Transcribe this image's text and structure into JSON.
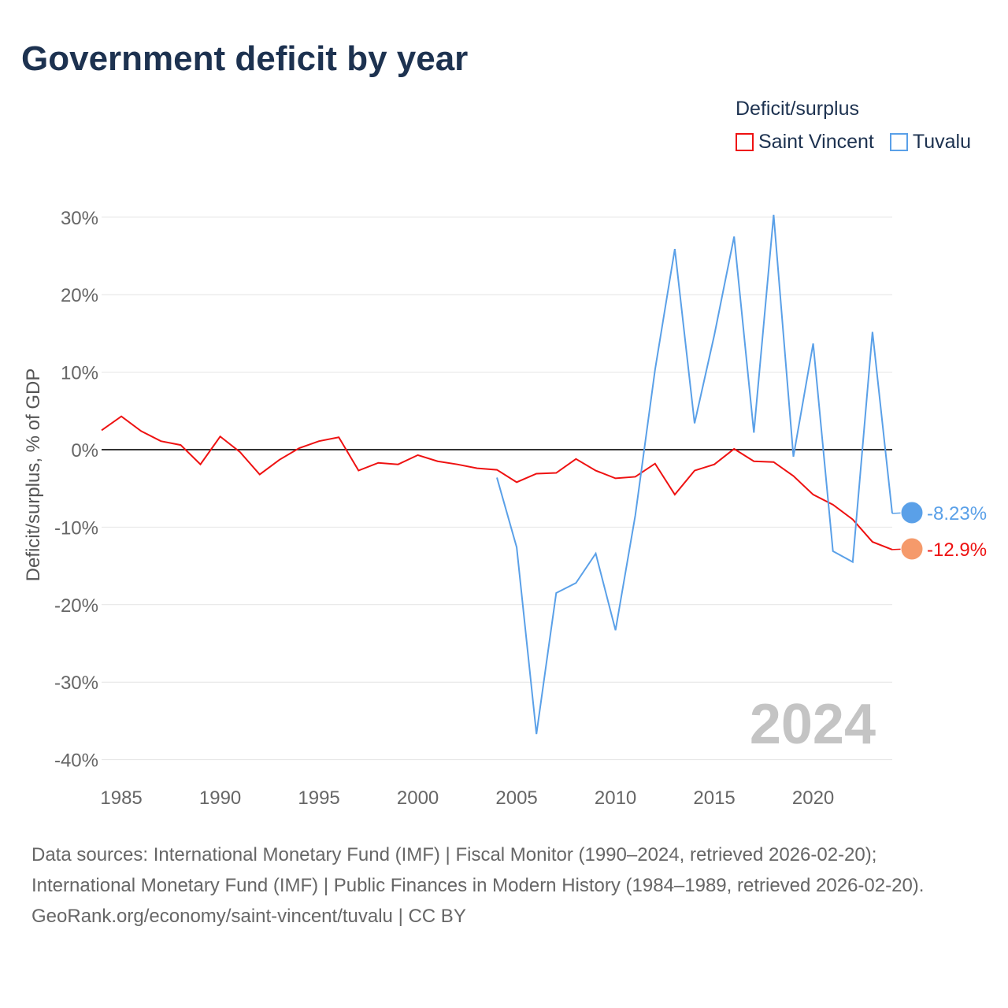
{
  "title": "Government deficit by year",
  "legend": {
    "title": "Deficit/surplus",
    "items": [
      {
        "label": "Saint Vincent",
        "color": "#ee1111"
      },
      {
        "label": "Tuvalu",
        "color": "#5aa0e8"
      }
    ]
  },
  "watermark_year": "2024",
  "footer": {
    "sources": "Data sources: International Monetary Fund (IMF) | Fiscal Monitor (1990–2024, retrieved 2026-02-20); International Monetary Fund (IMF) | Public Finances in Modern History (1984–1989, retrieved 2026-02-20).",
    "link": "GeoRank.org/economy/saint-vincent/tuvalu | CC BY"
  },
  "chart_data": {
    "type": "line",
    "title": "Government deficit by year",
    "ylabel": "Deficit/surplus, % of GDP",
    "xlabel": "",
    "xlim": [
      1984,
      2024
    ],
    "ylim": [
      -40,
      30
    ],
    "xticks": [
      1985,
      1990,
      1995,
      2000,
      2005,
      2010,
      2015,
      2020
    ],
    "yticks": [
      30,
      20,
      10,
      0,
      -10,
      -20,
      -30,
      -40
    ],
    "ytick_labels": [
      "30%",
      "20%",
      "10%",
      "0%",
      "-10%",
      "-20%",
      "-30%",
      "-40%"
    ],
    "grid": true,
    "legend_position": "top-right",
    "series": [
      {
        "name": "Saint Vincent",
        "color": "#ee1111",
        "end_label": "-12.9%",
        "x": [
          1984,
          1985,
          1986,
          1987,
          1988,
          1989,
          1990,
          1991,
          1992,
          1993,
          1994,
          1995,
          1996,
          1997,
          1998,
          1999,
          2000,
          2001,
          2002,
          2003,
          2004,
          2005,
          2006,
          2007,
          2008,
          2009,
          2010,
          2011,
          2012,
          2013,
          2014,
          2015,
          2016,
          2017,
          2018,
          2019,
          2020,
          2021,
          2022,
          2023,
          2024
        ],
        "values": [
          2.5,
          4.3,
          2.4,
          1.1,
          0.6,
          -1.9,
          1.7,
          -0.3,
          -3.2,
          -1.3,
          0.2,
          1.1,
          1.6,
          -2.7,
          -1.7,
          -1.9,
          -0.7,
          -1.5,
          -1.9,
          -2.4,
          -2.6,
          -4.2,
          -3.1,
          -3.0,
          -1.2,
          -2.7,
          -3.7,
          -3.5,
          -1.8,
          -5.8,
          -2.7,
          -1.9,
          0.1,
          -1.5,
          -1.6,
          -3.4,
          -5.8,
          -7.1,
          -9.0,
          -11.9,
          -12.9
        ]
      },
      {
        "name": "Tuvalu",
        "color": "#5aa0e8",
        "end_label": "-8.23%",
        "x": [
          2004,
          2005,
          2006,
          2007,
          2008,
          2009,
          2010,
          2011,
          2012,
          2013,
          2014,
          2015,
          2016,
          2017,
          2018,
          2019,
          2020,
          2021,
          2022,
          2023,
          2024
        ],
        "values": [
          -3.6,
          -12.6,
          -36.7,
          -18.5,
          -17.2,
          -13.4,
          -23.3,
          -8.5,
          10.3,
          25.9,
          3.4,
          14.8,
          27.5,
          2.2,
          30.3,
          -0.9,
          13.7,
          -13.1,
          -14.5,
          15.2,
          -8.23
        ]
      }
    ]
  }
}
